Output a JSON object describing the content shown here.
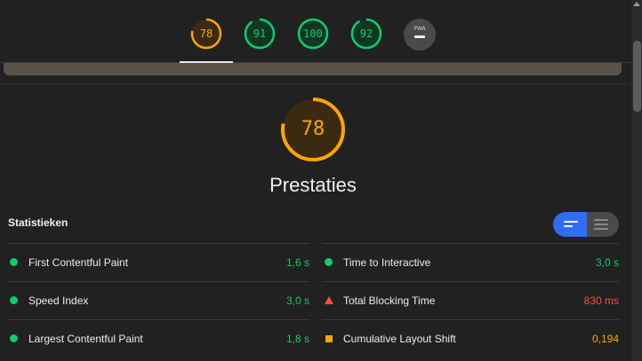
{
  "colors": {
    "pass": "#0cce6b",
    "average": "#ffa400",
    "fail": "#ff4e42",
    "toggle_active": "#2f6df6"
  },
  "score_tabs": [
    {
      "score": "78",
      "fraction": 0.78,
      "color": "#ffa400"
    },
    {
      "score": "91",
      "fraction": 0.91,
      "color": "#0cce6b"
    },
    {
      "score": "100",
      "fraction": 1.0,
      "color": "#0cce6b"
    },
    {
      "score": "92",
      "fraction": 0.92,
      "color": "#0cce6b"
    }
  ],
  "pwa_badge": {
    "label": "PWA",
    "icon": "dash-icon"
  },
  "performance": {
    "score": "78",
    "fraction": 0.78,
    "title": "Prestaties"
  },
  "statistics": {
    "heading": "Statistieken",
    "view_toggle": {
      "left_icon": "list-view-icon",
      "right_icon": "table-view-icon"
    },
    "metrics_left": [
      {
        "label": "First Contentful Paint",
        "value": "1,6 s",
        "status": "pass"
      },
      {
        "label": "Speed Index",
        "value": "3,0 s",
        "status": "pass"
      },
      {
        "label": "Largest Contentful Paint",
        "value": "1,8 s",
        "status": "pass"
      }
    ],
    "metrics_right": [
      {
        "label": "Time to Interactive",
        "value": "3,0 s",
        "status": "pass"
      },
      {
        "label": "Total Blocking Time",
        "value": "830 ms",
        "status": "fail"
      },
      {
        "label": "Cumulative Layout Shift",
        "value": "0,194",
        "status": "average"
      }
    ]
  }
}
